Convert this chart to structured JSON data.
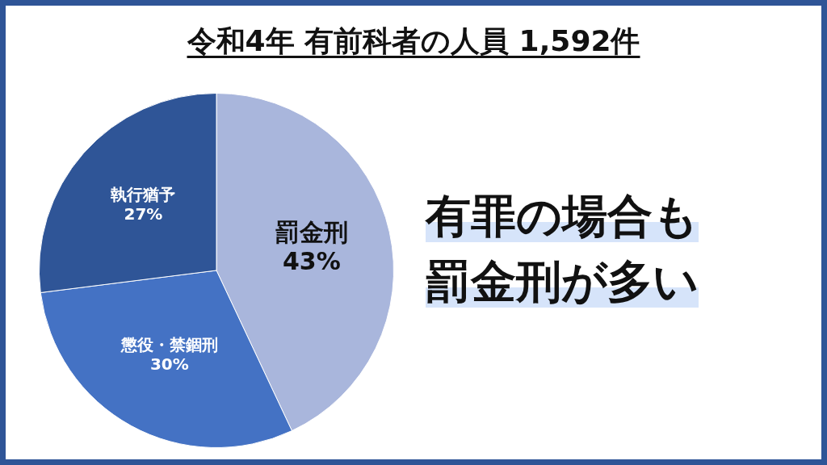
{
  "chart_data": {
    "type": "pie",
    "title": "令和4年 有前科者の人員 1,592件",
    "categories": [
      "罰金刑",
      "懲役・禁錮刑",
      "執行猶予"
    ],
    "values": [
      43,
      30,
      27
    ],
    "value_labels": [
      "43%",
      "30%",
      "27%"
    ],
    "colors": [
      "#a9b6dc",
      "#4472c4",
      "#2f5597"
    ],
    "legend": false,
    "annotations": [
      "有罪の場合も罰金刑が多い"
    ]
  }
}
